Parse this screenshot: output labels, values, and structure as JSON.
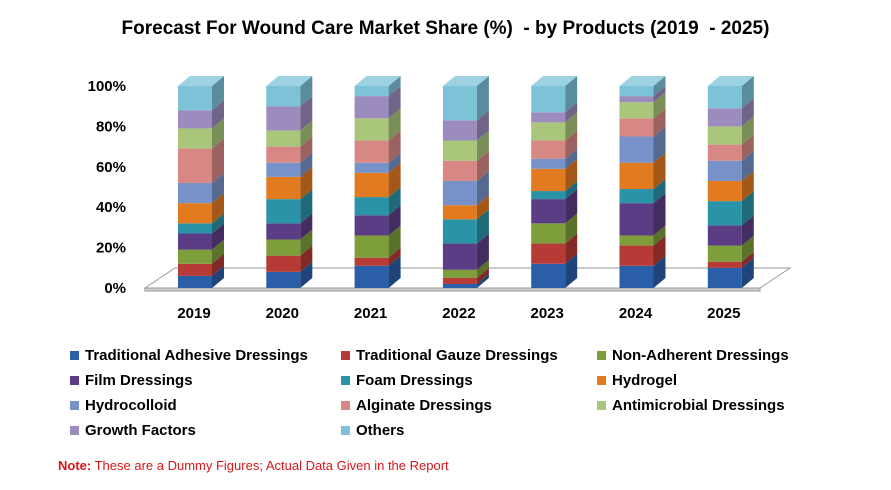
{
  "title": "Forecast For Wound Care Market Share (%)  - by Products (2019  - 2025)",
  "note": {
    "label": "Note:",
    "text": " These are a Dummy Figures; Actual Data Given in the Report"
  },
  "chart_data": {
    "type": "bar",
    "stacked": true,
    "three_d": true,
    "categories": [
      "2019",
      "2020",
      "2021",
      "2022",
      "2023",
      "2024",
      "2025"
    ],
    "y_ticks": [
      "0%",
      "20%",
      "40%",
      "60%",
      "80%",
      "100%"
    ],
    "ylim": [
      0,
      100
    ],
    "legend_position": "bottom",
    "series": [
      {
        "name": "Traditional Adhesive Dressings",
        "color": "#2a5ea8",
        "values": [
          6,
          8,
          11,
          2,
          12,
          11,
          10
        ]
      },
      {
        "name": "Traditional Gauze Dressings",
        "color": "#b63a36",
        "values": [
          6,
          8,
          4,
          3,
          10,
          10,
          3
        ]
      },
      {
        "name": "Non-Adherent Dressings",
        "color": "#7d9e3a",
        "values": [
          7,
          8,
          11,
          4,
          10,
          5,
          8
        ]
      },
      {
        "name": "Film Dressings",
        "color": "#5b3d85",
        "values": [
          8,
          8,
          10,
          13,
          12,
          16,
          10
        ]
      },
      {
        "name": "Foam Dressings",
        "color": "#2b93a8",
        "values": [
          5,
          12,
          9,
          12,
          4,
          7,
          12
        ]
      },
      {
        "name": "Hydrogel",
        "color": "#e27a20",
        "values": [
          10,
          11,
          12,
          7,
          11,
          13,
          10
        ]
      },
      {
        "name": "Hydrocolloid",
        "color": "#7792c9",
        "values": [
          10,
          7,
          5,
          12,
          5,
          13,
          10
        ]
      },
      {
        "name": "Alginate Dressings",
        "color": "#d88884",
        "values": [
          17,
          8,
          11,
          10,
          9,
          9,
          8
        ]
      },
      {
        "name": "Antimicrobial Dressings",
        "color": "#aac67a",
        "values": [
          10,
          8,
          11,
          10,
          9,
          8,
          9
        ]
      },
      {
        "name": "Growth Factors",
        "color": "#9c8bbd",
        "values": [
          9,
          12,
          11,
          10,
          5,
          3,
          9
        ]
      },
      {
        "name": "Others",
        "color": "#7cc3d8",
        "values": [
          12,
          10,
          5,
          17,
          13,
          5,
          11
        ]
      }
    ]
  }
}
